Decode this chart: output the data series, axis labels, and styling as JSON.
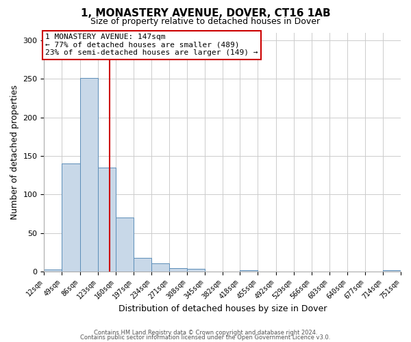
{
  "title": "1, MONASTERY AVENUE, DOVER, CT16 1AB",
  "subtitle": "Size of property relative to detached houses in Dover",
  "xlabel": "Distribution of detached houses by size in Dover",
  "ylabel": "Number of detached properties",
  "footer_line1": "Contains HM Land Registry data © Crown copyright and database right 2024.",
  "footer_line2": "Contains public sector information licensed under the Open Government Licence v3.0.",
  "bin_edges": [
    12,
    49,
    86,
    123,
    160,
    197,
    234,
    271,
    308,
    345,
    382,
    418,
    455,
    492,
    529,
    566,
    603,
    640,
    677,
    714,
    751
  ],
  "bin_labels": [
    "12sqm",
    "49sqm",
    "86sqm",
    "123sqm",
    "160sqm",
    "197sqm",
    "234sqm",
    "271sqm",
    "308sqm",
    "345sqm",
    "382sqm",
    "418sqm",
    "455sqm",
    "492sqm",
    "529sqm",
    "566sqm",
    "603sqm",
    "640sqm",
    "677sqm",
    "714sqm",
    "751sqm"
  ],
  "counts": [
    3,
    140,
    251,
    135,
    70,
    18,
    11,
    5,
    4,
    0,
    0,
    2,
    0,
    0,
    0,
    0,
    0,
    0,
    0,
    2
  ],
  "bar_color": "#c8d8e8",
  "bar_edge_color": "#5b8db8",
  "property_value": 147,
  "vline_color": "#cc0000",
  "annotation_title": "1 MONASTERY AVENUE: 147sqm",
  "annotation_line2": "← 77% of detached houses are smaller (489)",
  "annotation_line3": "23% of semi-detached houses are larger (149) →",
  "annotation_box_color": "#cc0000",
  "ylim": [
    0,
    310
  ],
  "yticks": [
    0,
    50,
    100,
    150,
    200,
    250,
    300
  ],
  "background_color": "#ffffff",
  "grid_color": "#cccccc"
}
